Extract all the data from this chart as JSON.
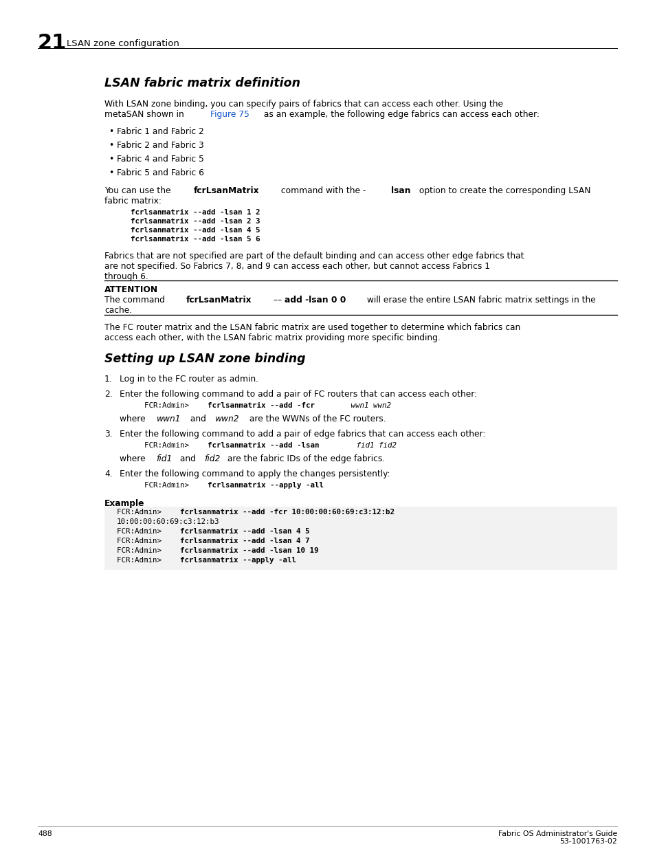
{
  "page_number": "488",
  "footer_right1": "Fabric OS Administrator's Guide",
  "footer_right2": "53-1001763-02",
  "chapter_number": "21",
  "chapter_title": "LSAN zone configuration",
  "section1_title": "LSAN fabric matrix definition",
  "bullets": [
    "Fabric 1 and Fabric 2",
    "Fabric 2 and Fabric 3",
    "Fabric 4 and Fabric 5",
    "Fabric 5 and Fabric 6"
  ],
  "code_block1": [
    "fcrlsanmatrix --add -lsan 1 2",
    "fcrlsanmatrix --add -lsan 2 3",
    "fcrlsanmatrix --add -lsan 4 5",
    "fcrlsanmatrix --add -lsan 5 6"
  ],
  "section2_title": "Setting up LSAN zone binding",
  "attention_label": "ATTENTION",
  "example_label": "Example",
  "bg_color": "#ffffff",
  "black": "#000000",
  "blue": "#1155cc",
  "code_bg": "#f2f2f2"
}
